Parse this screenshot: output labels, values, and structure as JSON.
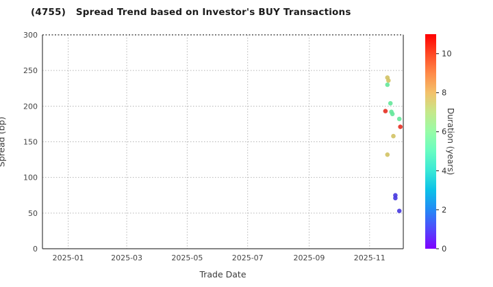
{
  "title": "(4755)   Spread Trend based on Investor's BUY Transactions",
  "chart_data": {
    "type": "scatter",
    "title": "(4755)   Spread Trend based on Investor's BUY Transactions",
    "xlabel": "Trade Date",
    "ylabel": "Spread (bp)",
    "ylim": [
      0,
      300
    ],
    "y_ticks": [
      0,
      50,
      100,
      150,
      200,
      250,
      300
    ],
    "x_ticks": [
      {
        "label": "2025-01",
        "date": "2025-01-01"
      },
      {
        "label": "2025-03",
        "date": "2025-03-01"
      },
      {
        "label": "2025-05",
        "date": "2025-05-01"
      },
      {
        "label": "2025-07",
        "date": "2025-07-01"
      },
      {
        "label": "2025-09",
        "date": "2025-09-01"
      },
      {
        "label": "2025-11",
        "date": "2025-11-01"
      }
    ],
    "x_range": [
      "2024-12-06",
      "2025-12-05"
    ],
    "grid": "dotted gray, horizontal at y ticks and vertical at labeled x ticks",
    "legend_position": "none (colorbar on right)",
    "points": [
      {
        "date": "2025-11-19",
        "spread_bp": 240,
        "duration_years": 6.8,
        "color": "#d3c366"
      },
      {
        "date": "2025-11-20",
        "spread_bp": 236,
        "duration_years": 6.8,
        "color": "#d3c366"
      },
      {
        "date": "2025-11-19",
        "spread_bp": 230,
        "duration_years": 5.0,
        "color": "#67e79c"
      },
      {
        "date": "2025-11-22",
        "spread_bp": 204,
        "duration_years": 5.0,
        "color": "#67e79c"
      },
      {
        "date": "2025-11-17",
        "spread_bp": 193,
        "duration_years": 10.7,
        "color": "#e63226"
      },
      {
        "date": "2025-11-23",
        "spread_bp": 192,
        "duration_years": 5.0,
        "color": "#67e79c"
      },
      {
        "date": "2025-11-24",
        "spread_bp": 189,
        "duration_years": 5.0,
        "color": "#67e79c"
      },
      {
        "date": "2025-12-01",
        "spread_bp": 182,
        "duration_years": 5.0,
        "color": "#67e79c"
      },
      {
        "date": "2025-12-02",
        "spread_bp": 171,
        "duration_years": 10.7,
        "color": "#e63226"
      },
      {
        "date": "2025-11-25",
        "spread_bp": 158,
        "duration_years": 6.8,
        "color": "#d3c366"
      },
      {
        "date": "2025-11-19",
        "spread_bp": 132,
        "duration_years": 6.5,
        "color": "#d3c366"
      },
      {
        "date": "2025-11-27",
        "spread_bp": 75,
        "duration_years": 1.0,
        "color": "#4a3ce0"
      },
      {
        "date": "2025-11-27",
        "spread_bp": 71,
        "duration_years": 1.0,
        "color": "#4a3ce0"
      },
      {
        "date": "2025-12-01",
        "spread_bp": 53,
        "duration_years": 0.9,
        "color": "#4a3ce0"
      }
    ],
    "colorbar": {
      "label": "Duration (years)",
      "ticks": [
        0,
        2,
        4,
        6,
        8,
        10
      ],
      "vmin": 0,
      "vmax": 11,
      "colormap": "rainbow",
      "gradient_stops": [
        {
          "value": 0,
          "color": "#7f00ff"
        },
        {
          "value": 1,
          "color": "#5148fc"
        },
        {
          "value": 2,
          "color": "#238af5"
        },
        {
          "value": 3,
          "color": "#0cc1e8"
        },
        {
          "value": 4,
          "color": "#3ae8d6"
        },
        {
          "value": 5,
          "color": "#68fcc1"
        },
        {
          "value": 6,
          "color": "#97fca7"
        },
        {
          "value": 7,
          "color": "#c5e88a"
        },
        {
          "value": 8,
          "color": "#f3c16a"
        },
        {
          "value": 9,
          "color": "#ff8a48"
        },
        {
          "value": 10,
          "color": "#ff4824"
        },
        {
          "value": 11,
          "color": "#ff0000"
        }
      ]
    },
    "style": {
      "grid_color": "#b3b3b3",
      "spine_color": "#3c3c3c",
      "tick_label_color": "#444444",
      "title_color": "#1a1a1a",
      "background": "#ffffff",
      "marker_radius_px": 3.3
    }
  }
}
